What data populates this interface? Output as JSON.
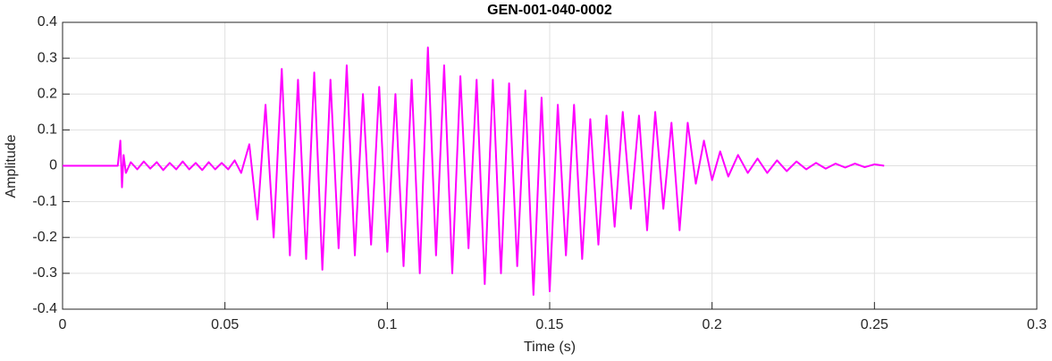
{
  "chart_data": {
    "type": "line",
    "title": "GEN-001-040-0002",
    "x_label": "Time (s)",
    "y_label": "Amplitude",
    "xlim": [
      0,
      0.3
    ],
    "xticks": [
      0,
      0.05,
      0.1,
      0.15,
      0.2,
      0.25,
      0.3
    ],
    "ylim": [
      -0.4,
      0.4
    ],
    "yticks": [
      -0.4,
      -0.3,
      -0.2,
      -0.1,
      0,
      0.1,
      0.2,
      0.3,
      0.4
    ],
    "grid": true,
    "series": [
      {
        "color": "#ff00ff",
        "x": [
          0,
          0.017,
          0.0178,
          0.0183,
          0.0188,
          0.0195,
          0.021,
          0.023,
          0.025,
          0.027,
          0.029,
          0.031,
          0.033,
          0.035,
          0.037,
          0.039,
          0.041,
          0.043,
          0.045,
          0.047,
          0.049,
          0.051,
          0.053,
          0.055,
          0.0575,
          0.06,
          0.0625,
          0.065,
          0.0675,
          0.07,
          0.0725,
          0.075,
          0.0775,
          0.08,
          0.0825,
          0.085,
          0.0875,
          0.09,
          0.0925,
          0.095,
          0.0975,
          0.1,
          0.1025,
          0.105,
          0.1075,
          0.11,
          0.1125,
          0.115,
          0.1175,
          0.12,
          0.1225,
          0.125,
          0.1275,
          0.13,
          0.1325,
          0.135,
          0.1375,
          0.14,
          0.1425,
          0.145,
          0.1475,
          0.15,
          0.1525,
          0.155,
          0.1575,
          0.16,
          0.1625,
          0.165,
          0.1675,
          0.17,
          0.1725,
          0.175,
          0.1775,
          0.18,
          0.1825,
          0.185,
          0.1875,
          0.19,
          0.1925,
          0.195,
          0.1975,
          0.2,
          0.2025,
          0.205,
          0.208,
          0.211,
          0.214,
          0.217,
          0.22,
          0.223,
          0.226,
          0.229,
          0.232,
          0.235,
          0.238,
          0.241,
          0.244,
          0.247,
          0.25,
          0.253
        ],
        "values": [
          0,
          0,
          0.07,
          -0.06,
          0.03,
          -0.02,
          0.01,
          -0.01,
          0.012,
          -0.008,
          0.01,
          -0.012,
          0.008,
          -0.01,
          0.012,
          -0.01,
          0.008,
          -0.012,
          0.01,
          -0.01,
          0.008,
          -0.01,
          0.015,
          -0.02,
          0.06,
          -0.15,
          0.17,
          -0.2,
          0.27,
          -0.25,
          0.24,
          -0.26,
          0.26,
          -0.29,
          0.24,
          -0.23,
          0.28,
          -0.25,
          0.2,
          -0.22,
          0.22,
          -0.24,
          0.2,
          -0.28,
          0.24,
          -0.3,
          0.33,
          -0.25,
          0.28,
          -0.3,
          0.25,
          -0.23,
          0.24,
          -0.33,
          0.24,
          -0.3,
          0.23,
          -0.28,
          0.21,
          -0.36,
          0.19,
          -0.35,
          0.17,
          -0.25,
          0.17,
          -0.26,
          0.13,
          -0.22,
          0.14,
          -0.17,
          0.15,
          -0.12,
          0.14,
          -0.18,
          0.15,
          -0.12,
          0.12,
          -0.18,
          0.12,
          -0.05,
          0.07,
          -0.04,
          0.04,
          -0.03,
          0.03,
          -0.02,
          0.02,
          -0.02,
          0.015,
          -0.015,
          0.012,
          -0.01,
          0.008,
          -0.008,
          0.006,
          -0.005,
          0.006,
          -0.004,
          0.004,
          0
        ]
      }
    ]
  }
}
